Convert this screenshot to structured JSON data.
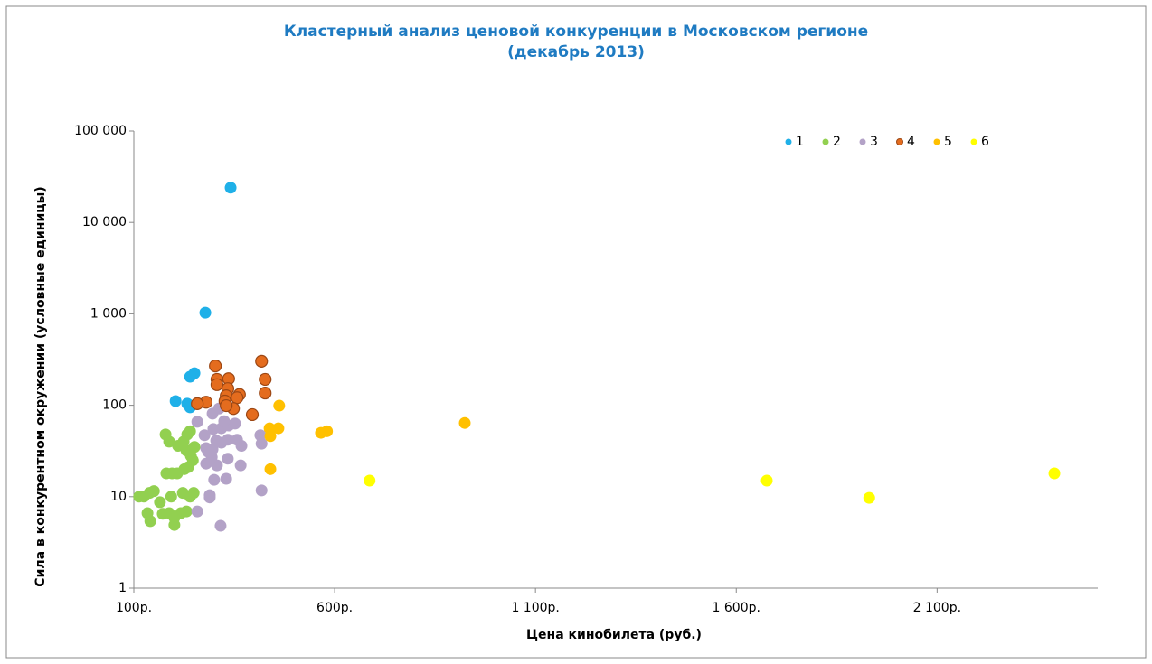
{
  "chart_data": {
    "type": "scatter",
    "title": "Кластерный анализ ценовой конкуренции в Московском регионе",
    "subtitle": "(декабрь 2013)",
    "x_label": "Цена кинобилета (руб.)",
    "y_label": "Сила в конкурентном окружении (условные единицы)",
    "xlim": [
      100,
      2500
    ],
    "xticks": [
      {
        "value": 100,
        "label": "100р."
      },
      {
        "value": 600,
        "label": "600р."
      },
      {
        "value": 1100,
        "label": "1 100р."
      },
      {
        "value": 1600,
        "label": "1 600р."
      },
      {
        "value": 2100,
        "label": "2 100р."
      }
    ],
    "ylim": [
      1,
      100000
    ],
    "ylog": true,
    "yticks": [
      1,
      10,
      100,
      {
        "value": 1000,
        "label": "1 000"
      },
      {
        "value": 10000,
        "label": "10 000"
      },
      {
        "value": 100000,
        "label": "100 000"
      }
    ],
    "grid": false,
    "legend": "top-right",
    "series": [
      {
        "name": "1",
        "color": "#1fb0e8",
        "x": [
          341,
          278,
          251,
          240,
          204,
          233,
          240
        ],
        "values": [
          24000,
          1030,
          224,
          205,
          111,
          104,
          95
        ]
      },
      {
        "name": "2",
        "color": "#92d050",
        "x": [
          179,
          188,
          210,
          224,
          233,
          240,
          231,
          242,
          247,
          235,
          226,
          181,
          195,
          208,
          251,
          193,
          222,
          249,
          240,
          125,
          139,
          150,
          113,
          165,
          134,
          141,
          172,
          188,
          201,
          201,
          217,
          231
        ],
        "values": [
          48,
          40,
          36,
          40,
          48,
          52,
          32,
          28,
          25,
          21,
          20,
          18,
          18,
          18,
          35,
          10,
          11,
          11,
          10,
          10,
          11,
          11.5,
          10,
          8.7,
          6.6,
          5.4,
          6.5,
          6.6,
          5.9,
          4.9,
          6.6,
          6.9
        ]
      },
      {
        "name": "3",
        "color": "#b3a2c7",
        "x": [
          258,
          316,
          289,
          289,
          330,
          300,
          418,
          366,
          334,
          307,
          280,
          285,
          296,
          318,
          334,
          357,
          368,
          418,
          415,
          298,
          318,
          336,
          352,
          258,
          296,
          312,
          305,
          276,
          280,
          294,
          325
        ],
        "values": [
          6.9,
          4.8,
          10.4,
          9.8,
          15.7,
          15.3,
          11.7,
          22,
          26,
          22,
          23,
          31,
          33,
          39,
          42,
          42,
          36,
          38,
          47,
          55,
          56,
          60,
          63,
          66,
          81,
          92,
          41,
          47,
          34,
          27,
          67
        ]
      },
      {
        "name": "4",
        "color": "#e46c1e",
        "edge_color": "#9c4714",
        "x": [
          303,
          307,
          307,
          336,
          334,
          330,
          327,
          363,
          357,
          348,
          330,
          280,
          258,
          395,
          418,
          427,
          427
        ],
        "values": [
          269,
          192,
          168,
          195,
          152,
          127,
          111,
          131,
          121,
          92,
          99,
          108,
          104,
          79,
          303,
          192,
          136
        ]
      },
      {
        "name": "5",
        "color": "#ffc000",
        "x": [
          462,
          460,
          438,
          440,
          440,
          566,
          581,
          924
        ],
        "values": [
          99,
          56,
          56,
          46,
          20,
          50,
          52,
          64
        ]
      },
      {
        "name": "6",
        "color": "#ffff00",
        "x": [
          687,
          1676,
          1931,
          2392
        ],
        "values": [
          15,
          15,
          9.7,
          18
        ]
      }
    ]
  }
}
